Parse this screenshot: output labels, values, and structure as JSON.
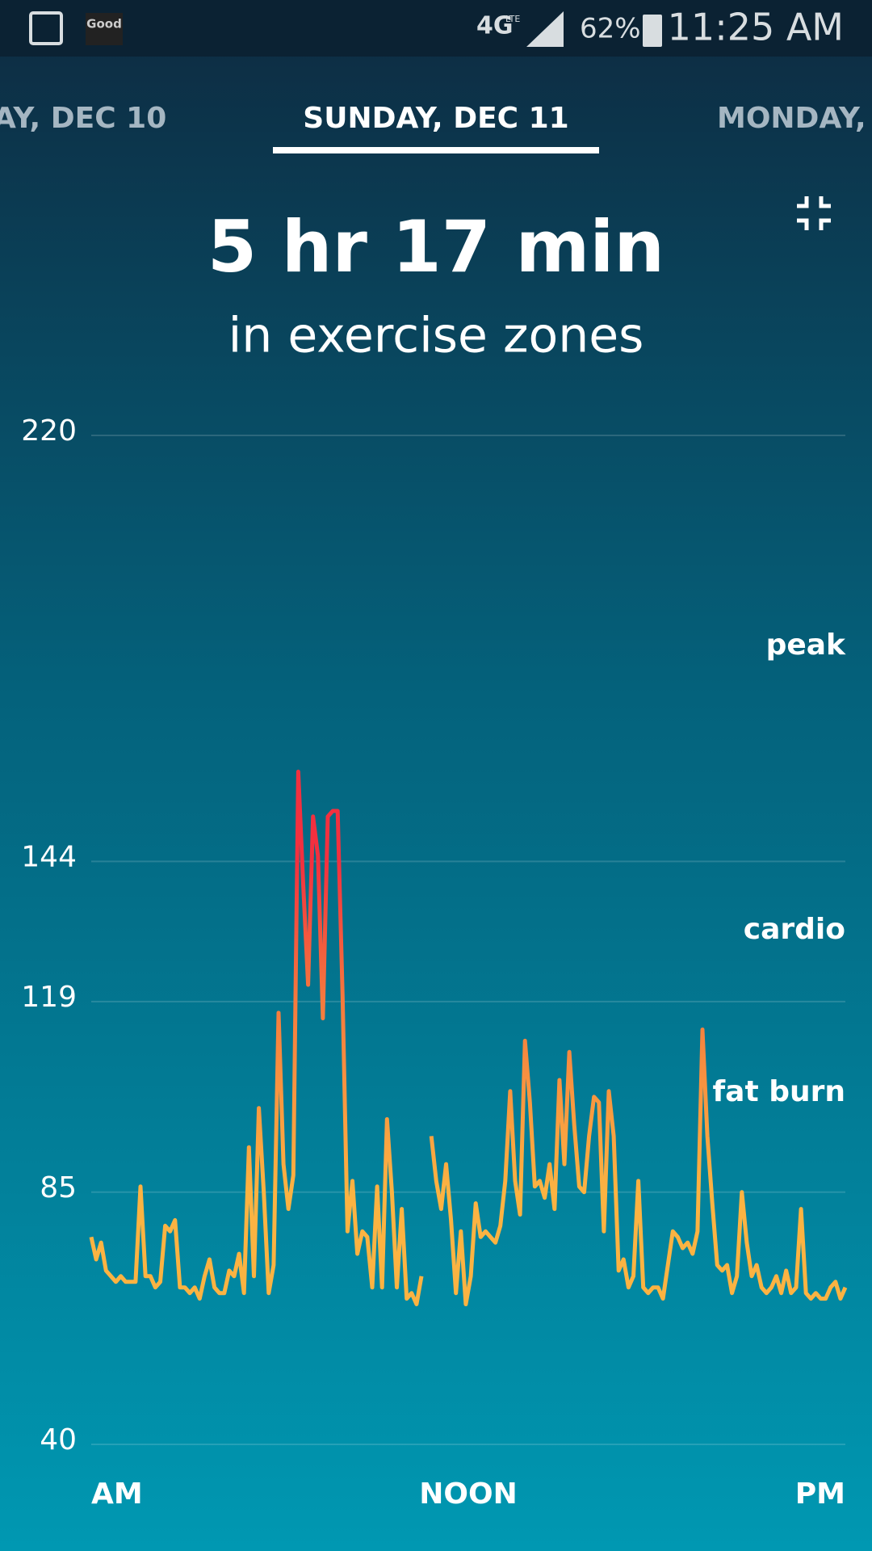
{
  "status_bar": {
    "app_badge": "Good",
    "network": "4G",
    "network_sub": "LTE",
    "battery": "62%",
    "time": "11:25 AM"
  },
  "tabs": {
    "previous": "AY, DEC 10",
    "current": "SUNDAY, DEC 11",
    "next": "MONDAY,"
  },
  "header": {
    "value": "5 hr 17 min",
    "caption": "in exercise zones"
  },
  "chart_data": {
    "type": "line",
    "ylim": [
      40,
      220
    ],
    "yticks": [
      40,
      85,
      119,
      144,
      220
    ],
    "grid": true,
    "x_axis_labels": [
      "AM",
      "NOON",
      "PM"
    ],
    "annotations": [
      "peak",
      "cardio",
      "fat burn"
    ],
    "colors": [
      "#fbb342",
      "#f57a3e",
      "#f2303f"
    ],
    "values": [
      77,
      73,
      76,
      71,
      70,
      69,
      70,
      69,
      69,
      69,
      86,
      70,
      70,
      68,
      69,
      79,
      78,
      80,
      68,
      68,
      67,
      68,
      66,
      70,
      73,
      68,
      67,
      67,
      71,
      70,
      74,
      67,
      93,
      70,
      100,
      85,
      67,
      72,
      117,
      90,
      82,
      88,
      160,
      140,
      122,
      152,
      145,
      116,
      152,
      153,
      153,
      120,
      78,
      87,
      74,
      78,
      77,
      68,
      86,
      68,
      98,
      85,
      68,
      82,
      66,
      67,
      65,
      70,
      null,
      95,
      87,
      82,
      90,
      80,
      67,
      78,
      65,
      70,
      83,
      77,
      78,
      77,
      76,
      79,
      87,
      103,
      87,
      81,
      112,
      101,
      86,
      87,
      84,
      90,
      82,
      105,
      90,
      110,
      97,
      86,
      85,
      95,
      102,
      101,
      78,
      103,
      95,
      71,
      73,
      68,
      70,
      87,
      68,
      67,
      68,
      68,
      66,
      72,
      78,
      77,
      75,
      76,
      74,
      78,
      114,
      95,
      83,
      72,
      71,
      72,
      67,
      70,
      85,
      76,
      70,
      72,
      68,
      67,
      68,
      70,
      67,
      71,
      67,
      68,
      82,
      67,
      66,
      67,
      66,
      66,
      68,
      69,
      66,
      68
    ]
  }
}
